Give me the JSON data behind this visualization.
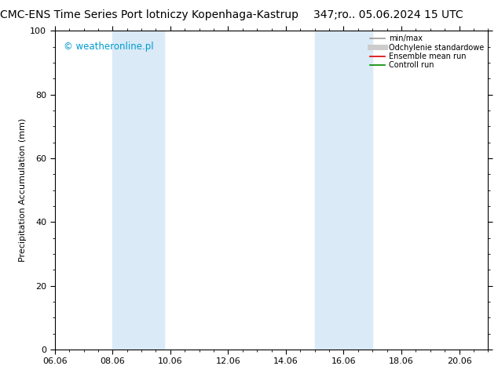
{
  "title_left": "CMC-ENS Time Series Port lotniczy Kopenhaga-Kastrup",
  "title_right": "347;ro.. 05.06.2024 15 UTC",
  "ylabel": "Precipitation Accumulation (mm)",
  "ylim": [
    0,
    100
  ],
  "xlim": [
    0,
    15
  ],
  "xtick_labels": [
    "06.06",
    "08.06",
    "10.06",
    "12.06",
    "14.06",
    "16.06",
    "18.06",
    "20.06"
  ],
  "xtick_positions": [
    0,
    2,
    4,
    6,
    8,
    10,
    12,
    14
  ],
  "watermark": "© weatheronline.pl",
  "watermark_color": "#009bce",
  "legend_items": [
    {
      "label": "min/max",
      "color": "#999999",
      "lw": 1.2,
      "type": "line"
    },
    {
      "label": "Odchylenie standardowe",
      "color": "#cccccc",
      "lw": 5,
      "type": "line"
    },
    {
      "label": "Ensemble mean run",
      "color": "#dd0000",
      "lw": 1.2,
      "type": "line"
    },
    {
      "label": "Controll run",
      "color": "#008800",
      "lw": 1.2,
      "type": "line"
    }
  ],
  "shaded_bands": [
    {
      "xmin": 2.0,
      "xmax": 3.8,
      "color": "#daeaf7",
      "alpha": 1.0
    },
    {
      "xmin": 9.0,
      "xmax": 11.0,
      "color": "#daeaf7",
      "alpha": 1.0
    }
  ],
  "background_color": "#ffffff",
  "plot_bg_color": "#ffffff",
  "title_fontsize": 10,
  "axis_label_fontsize": 8,
  "tick_fontsize": 8
}
